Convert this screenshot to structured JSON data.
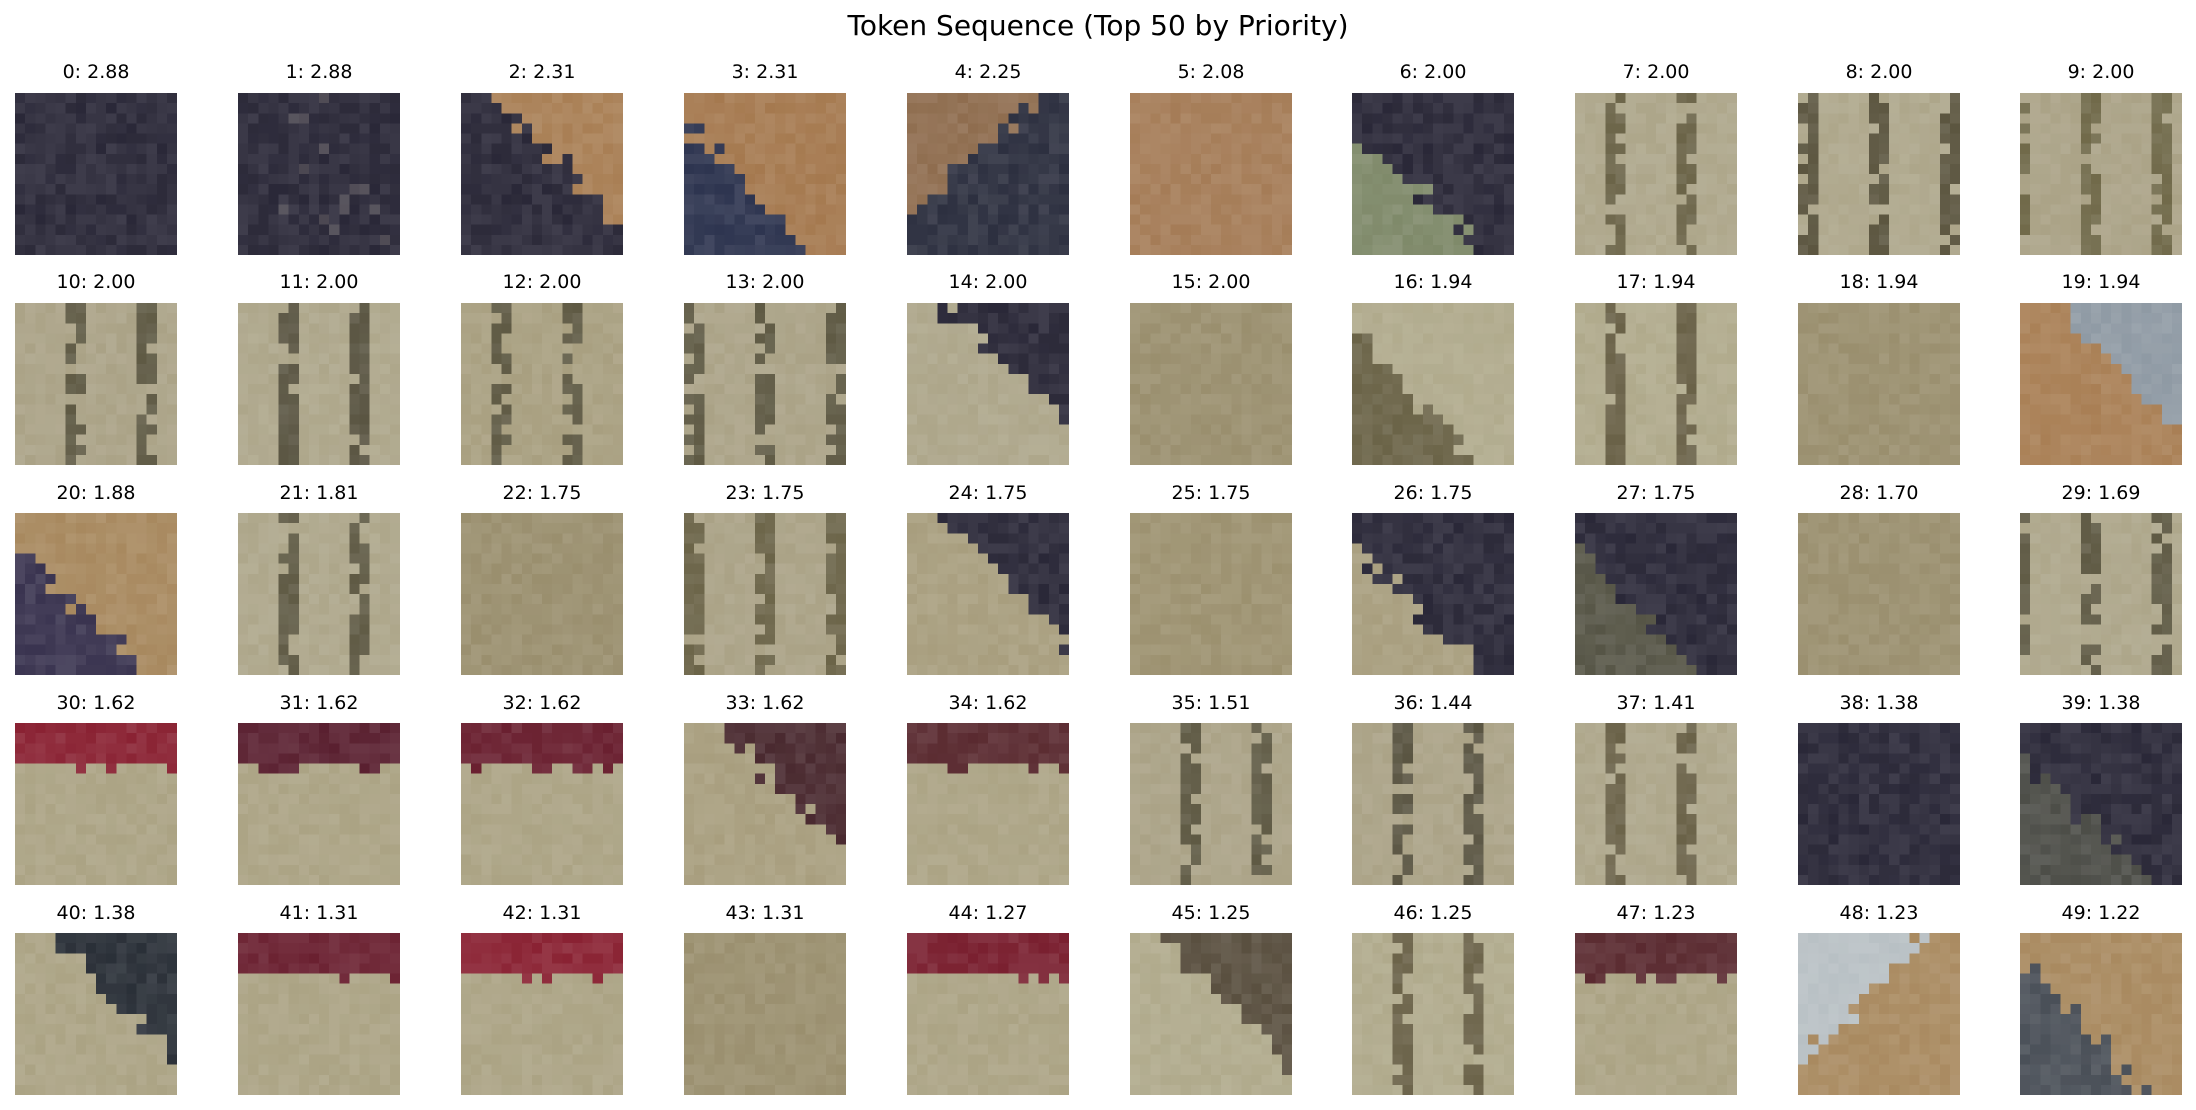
{
  "figure": {
    "title": "Token Sequence (Top 50 by Priority)"
  },
  "palette": {
    "navy": "#2a2838",
    "navy_deep": "#242230",
    "tan": "#9a8c6a",
    "khaki": "#ada68a",
    "olive": "#6b6448",
    "orange": "#a97f55",
    "crimson": "#8a2233",
    "steel": "#b8c0c4"
  },
  "tokens": [
    {
      "index": 0,
      "score": "2.88",
      "label": "0: 2.88",
      "kind": "solid",
      "base": "#2a2838"
    },
    {
      "index": 1,
      "score": "2.88",
      "label": "1: 2.88",
      "kind": "solid",
      "base": "#2a2838",
      "accent": "#4a4650",
      "dir": "tr"
    },
    {
      "index": 2,
      "score": "2.31",
      "label": "2: 2.31",
      "kind": "diagonal",
      "base": "#2a2838",
      "accent": "#a97f55",
      "dir": "tr"
    },
    {
      "index": 3,
      "score": "2.31",
      "label": "3: 2.31",
      "kind": "diagonal",
      "base": "#a5794f",
      "accent": "#2e3550",
      "dir": "bl"
    },
    {
      "index": 4,
      "score": "2.25",
      "label": "4: 2.25",
      "kind": "diagonal",
      "base": "#2d3040",
      "accent": "#8f6d4f",
      "dir": "tl"
    },
    {
      "index": 5,
      "score": "2.08",
      "label": "5: 2.08",
      "kind": "solid",
      "base": "#a57c57"
    },
    {
      "index": 6,
      "score": "2.00",
      "label": "6: 2.00",
      "kind": "diagonal",
      "base": "#2a2838",
      "accent": "#7f8a6a",
      "dir": "bl"
    },
    {
      "index": 7,
      "score": "2.00",
      "label": "7: 2.00",
      "kind": "stripes",
      "base": "#ada68a",
      "accent": "#6b6448"
    },
    {
      "index": 8,
      "score": "2.00",
      "label": "8: 2.00",
      "kind": "stripes",
      "base": "#ada68a",
      "accent": "#5c5640"
    },
    {
      "index": 9,
      "score": "2.00",
      "label": "9: 2.00",
      "kind": "stripes",
      "base": "#aaa286",
      "accent": "#6f6848"
    },
    {
      "index": 10,
      "score": "2.00",
      "label": "10: 2.00",
      "kind": "stripes",
      "base": "#aaa286",
      "accent": "#5f5a44"
    },
    {
      "index": 11,
      "score": "2.00",
      "label": "11: 2.00",
      "kind": "stripes",
      "base": "#ada68a",
      "accent": "#5a5542"
    },
    {
      "index": 12,
      "score": "2.00",
      "label": "12: 2.00",
      "kind": "stripes",
      "base": "#a89f80",
      "accent": "#5f5a44"
    },
    {
      "index": 13,
      "score": "2.00",
      "label": "13: 2.00",
      "kind": "stripes",
      "base": "#aaa286",
      "accent": "#5f5a44"
    },
    {
      "index": 14,
      "score": "2.00",
      "label": "14: 2.00",
      "kind": "diagonal",
      "base": "#ada68a",
      "accent": "#2a2838",
      "dir": "tr"
    },
    {
      "index": 15,
      "score": "2.00",
      "label": "15: 2.00",
      "kind": "solid",
      "base": "#9a8f6e"
    },
    {
      "index": 16,
      "score": "1.94",
      "label": "16: 1.94",
      "kind": "diagonal",
      "base": "#b0aa8c",
      "accent": "#6b6448",
      "dir": "bl"
    },
    {
      "index": 17,
      "score": "1.94",
      "label": "17: 1.94",
      "kind": "stripes",
      "base": "#b0aa8c",
      "accent": "#6a6248"
    },
    {
      "index": 18,
      "score": "1.94",
      "label": "18: 1.94",
      "kind": "solid",
      "base": "#9a8f6e"
    },
    {
      "index": 19,
      "score": "1.94",
      "label": "19: 1.94",
      "kind": "diagonal",
      "base": "#a97f55",
      "accent": "#8f9aa4",
      "dir": "tr"
    },
    {
      "index": 20,
      "score": "1.88",
      "label": "20: 1.88",
      "kind": "diagonal",
      "base": "#a8895f",
      "accent": "#3a3450",
      "dir": "bl"
    },
    {
      "index": 21,
      "score": "1.81",
      "label": "21: 1.81",
      "kind": "stripes",
      "base": "#ada68a",
      "accent": "#5f5a44"
    },
    {
      "index": 22,
      "score": "1.75",
      "label": "22: 1.75",
      "kind": "solid",
      "base": "#9a8f6e"
    },
    {
      "index": 23,
      "score": "1.75",
      "label": "23: 1.75",
      "kind": "stripes",
      "base": "#aaa286",
      "accent": "#6b6448"
    },
    {
      "index": 24,
      "score": "1.75",
      "label": "24: 1.75",
      "kind": "diagonal",
      "base": "#a89e7e",
      "accent": "#2a2838",
      "dir": "tr"
    },
    {
      "index": 25,
      "score": "1.75",
      "label": "25: 1.75",
      "kind": "solid",
      "base": "#9c916f"
    },
    {
      "index": 26,
      "score": "1.75",
      "label": "26: 1.75",
      "kind": "diagonal",
      "base": "#2a2838",
      "accent": "#a89e7e",
      "dir": "bl"
    },
    {
      "index": 27,
      "score": "1.75",
      "label": "27: 1.75",
      "kind": "diagonal",
      "base": "#2a2838",
      "accent": "#565546",
      "dir": "bl"
    },
    {
      "index": 28,
      "score": "1.70",
      "label": "28: 1.70",
      "kind": "solid",
      "base": "#9a8f6e"
    },
    {
      "index": 29,
      "score": "1.69",
      "label": "29: 1.69",
      "kind": "stripes",
      "base": "#ada68a",
      "accent": "#5f5a44"
    },
    {
      "index": 30,
      "score": "1.62",
      "label": "30: 1.62",
      "kind": "band",
      "base": "#aba384",
      "accent": "#8a2233"
    },
    {
      "index": 31,
      "score": "1.62",
      "label": "31: 1.62",
      "kind": "band",
      "base": "#aba384",
      "accent": "#5a2030"
    },
    {
      "index": 32,
      "score": "1.62",
      "label": "32: 1.62",
      "kind": "band",
      "base": "#aba384",
      "accent": "#6a2030"
    },
    {
      "index": 33,
      "score": "1.62",
      "label": "33: 1.62",
      "kind": "diagonal",
      "base": "#a89e7e",
      "accent": "#4a2a30",
      "dir": "tr"
    },
    {
      "index": 34,
      "score": "1.62",
      "label": "34: 1.62",
      "kind": "band",
      "base": "#aba384",
      "accent": "#5a2a30"
    },
    {
      "index": 35,
      "score": "1.51",
      "label": "35: 1.51",
      "kind": "stripes",
      "base": "#aaa286",
      "accent": "#5f5a44"
    },
    {
      "index": 36,
      "score": "1.44",
      "label": "36: 1.44",
      "kind": "stripes",
      "base": "#aaa286",
      "accent": "#5a5542"
    },
    {
      "index": 37,
      "score": "1.41",
      "label": "37: 1.41",
      "kind": "stripes",
      "base": "#ada68a",
      "accent": "#6a6248"
    },
    {
      "index": 38,
      "score": "1.38",
      "label": "38: 1.38",
      "kind": "solid",
      "base": "#2a2838"
    },
    {
      "index": 39,
      "score": "1.38",
      "label": "39: 1.38",
      "kind": "diagonal",
      "base": "#2a2838",
      "accent": "#4d4e48",
      "dir": "bl"
    },
    {
      "index": 40,
      "score": "1.38",
      "label": "40: 1.38",
      "kind": "diagonal",
      "base": "#aba384",
      "accent": "#2a3038",
      "dir": "tr"
    },
    {
      "index": 41,
      "score": "1.31",
      "label": "41: 1.31",
      "kind": "band",
      "base": "#aba384",
      "accent": "#6a2030"
    },
    {
      "index": 42,
      "score": "1.31",
      "label": "42: 1.31",
      "kind": "band",
      "base": "#aba384",
      "accent": "#8a2233"
    },
    {
      "index": 43,
      "score": "1.31",
      "label": "43: 1.31",
      "kind": "solid",
      "base": "#9a8f6e"
    },
    {
      "index": 44,
      "score": "1.27",
      "label": "44: 1.27",
      "kind": "band",
      "base": "#aba384",
      "accent": "#7a2030"
    },
    {
      "index": 45,
      "score": "1.25",
      "label": "45: 1.25",
      "kind": "diagonal",
      "base": "#b0aa8c",
      "accent": "#5a5040",
      "dir": "tr"
    },
    {
      "index": 46,
      "score": "1.25",
      "label": "46: 1.25",
      "kind": "stripes",
      "base": "#b0aa8c",
      "accent": "#6a6248"
    },
    {
      "index": 47,
      "score": "1.23",
      "label": "47: 1.23",
      "kind": "band",
      "base": "#aba384",
      "accent": "#5a2a30"
    },
    {
      "index": 48,
      "score": "1.23",
      "label": "48: 1.23",
      "kind": "diagonal",
      "base": "#a98a60",
      "accent": "#b8c0c4",
      "dir": "tl"
    },
    {
      "index": 49,
      "score": "1.22",
      "label": "49: 1.22",
      "kind": "diagonal",
      "base": "#a98a60",
      "accent": "#4a5058",
      "dir": "bl"
    }
  ]
}
